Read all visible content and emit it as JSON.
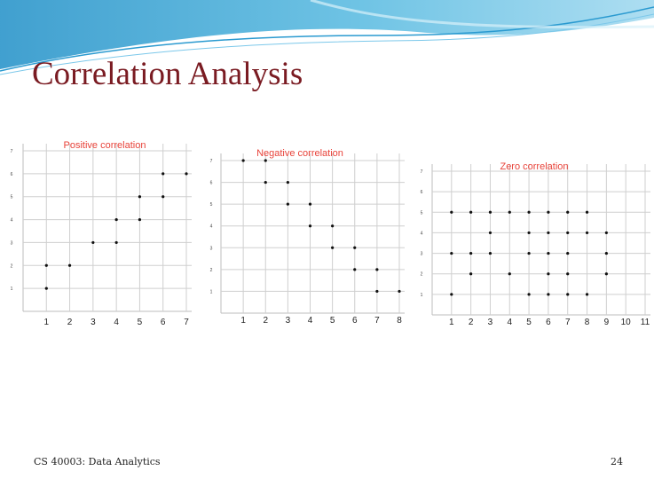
{
  "slide": {
    "title": "Correlation Analysis",
    "footer_left": "CS 40003: Data Analytics",
    "page_number": "24"
  },
  "chart_data": [
    {
      "type": "scatter",
      "title": "Positive correlation",
      "xlim": [
        0,
        7
      ],
      "ylim": [
        0,
        7
      ],
      "x_ticks": [
        1,
        2,
        3,
        4,
        5,
        6,
        7
      ],
      "y_ticks": [
        1,
        2,
        3,
        4,
        5,
        6,
        7
      ],
      "grid": true,
      "points": [
        [
          1,
          1
        ],
        [
          1,
          2
        ],
        [
          2,
          2
        ],
        [
          3,
          3
        ],
        [
          4,
          3
        ],
        [
          4,
          4
        ],
        [
          5,
          4
        ],
        [
          5,
          5
        ],
        [
          6,
          5
        ],
        [
          6,
          6
        ],
        [
          7,
          6
        ]
      ]
    },
    {
      "type": "scatter",
      "title": "Negative correlation",
      "xlim": [
        0,
        8
      ],
      "ylim": [
        0,
        7
      ],
      "x_ticks": [
        1,
        2,
        3,
        4,
        5,
        6,
        7,
        8
      ],
      "y_ticks": [
        1,
        2,
        3,
        4,
        5,
        6,
        7
      ],
      "grid": true,
      "points": [
        [
          1,
          7
        ],
        [
          2,
          7
        ],
        [
          2,
          6
        ],
        [
          3,
          6
        ],
        [
          3,
          5
        ],
        [
          4,
          5
        ],
        [
          4,
          4
        ],
        [
          5,
          4
        ],
        [
          5,
          3
        ],
        [
          6,
          3
        ],
        [
          6,
          2
        ],
        [
          7,
          2
        ],
        [
          7,
          1
        ],
        [
          8,
          1
        ]
      ]
    },
    {
      "type": "scatter",
      "title": "Zero correlation",
      "xlim": [
        0,
        11
      ],
      "ylim": [
        0,
        7
      ],
      "x_ticks": [
        1,
        2,
        3,
        4,
        5,
        6,
        7,
        8,
        9,
        10,
        11
      ],
      "y_ticks": [
        1,
        2,
        3,
        4,
        5,
        6,
        7
      ],
      "grid": true,
      "points": [
        [
          1,
          5
        ],
        [
          1,
          3
        ],
        [
          1,
          1
        ],
        [
          2,
          5
        ],
        [
          2,
          3
        ],
        [
          2,
          2
        ],
        [
          3,
          5
        ],
        [
          3,
          4
        ],
        [
          3,
          3
        ],
        [
          4,
          5
        ],
        [
          4,
          2
        ],
        [
          5,
          5
        ],
        [
          5,
          4
        ],
        [
          5,
          3
        ],
        [
          5,
          1
        ],
        [
          6,
          5
        ],
        [
          6,
          4
        ],
        [
          6,
          3
        ],
        [
          6,
          2
        ],
        [
          6,
          1
        ],
        [
          7,
          5
        ],
        [
          7,
          4
        ],
        [
          7,
          3
        ],
        [
          7,
          2
        ],
        [
          7,
          1
        ],
        [
          8,
          5
        ],
        [
          8,
          4
        ],
        [
          8,
          1
        ],
        [
          9,
          4
        ],
        [
          9,
          3
        ],
        [
          9,
          2
        ]
      ]
    }
  ],
  "colors": {
    "title": "#7a1b22",
    "chart_title": "#e8433a",
    "grid": "#cfcfcf",
    "point": "#111111",
    "banner_dark": "#1f8fc7",
    "banner_light": "#bfe6f5"
  }
}
